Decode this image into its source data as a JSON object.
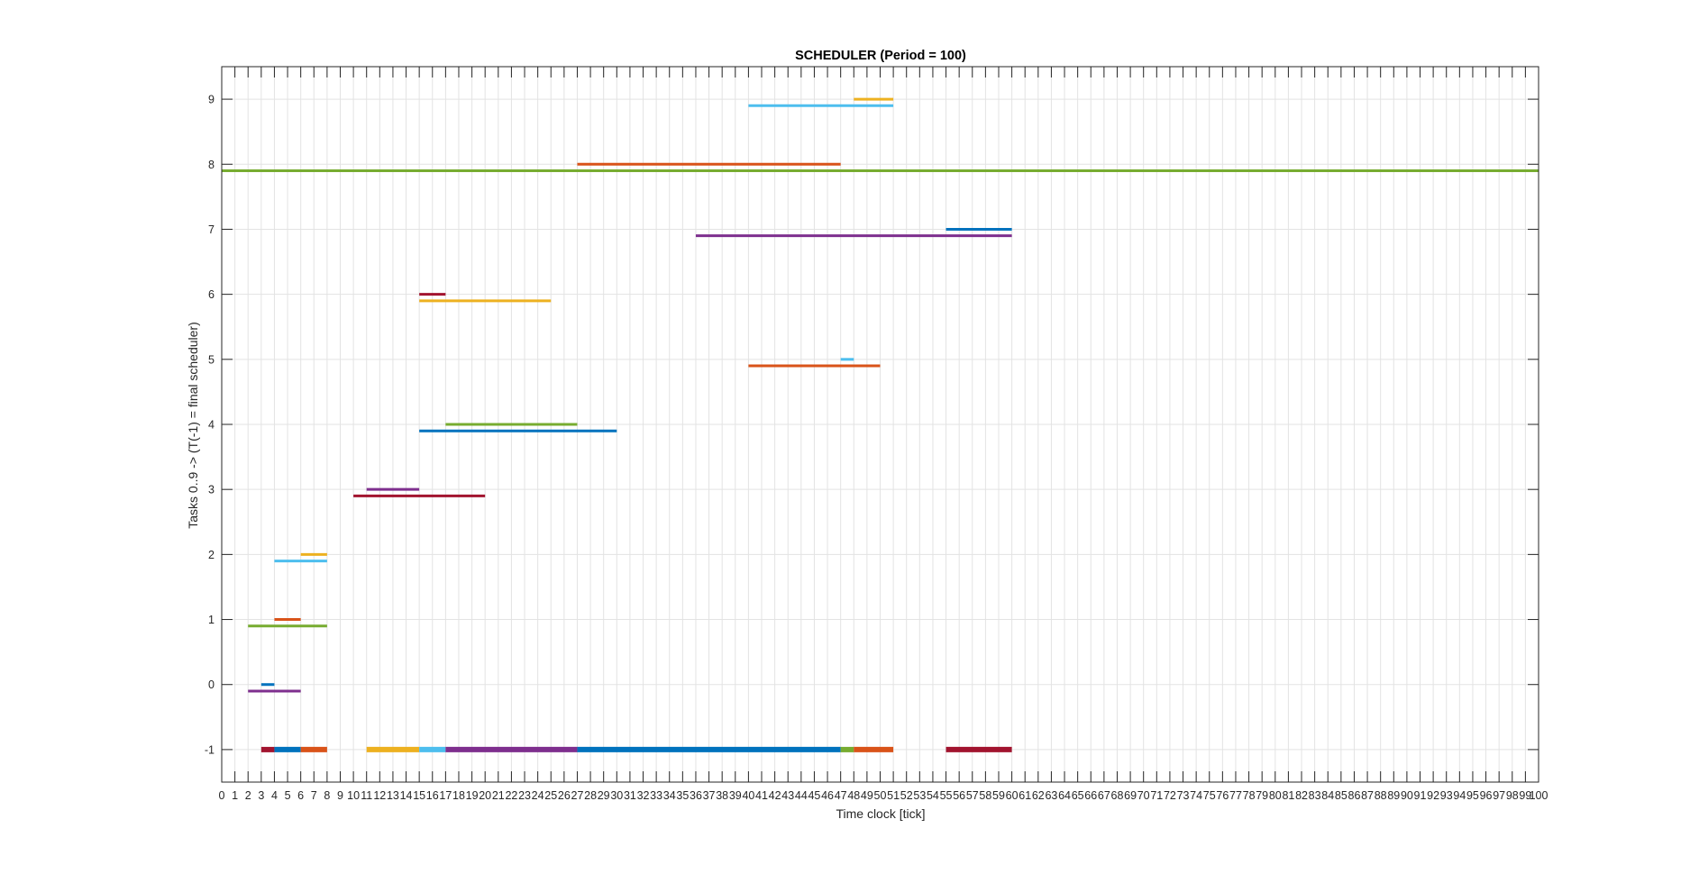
{
  "chart_data": {
    "type": "gantt",
    "title": "SCHEDULER (Period = 100)",
    "xlabel": "Time clock [tick]",
    "ylabel": "Tasks 0..9 -> (T(-1) = final scheduler)",
    "xlim": [
      0,
      100
    ],
    "ylim": [
      -1.5,
      9.5
    ],
    "xticks_step": 1,
    "yticks": [
      -1,
      0,
      1,
      2,
      3,
      4,
      5,
      6,
      7,
      8,
      9
    ],
    "grid": true,
    "colors": {
      "blue": "#0072BD",
      "orange": "#D95319",
      "yellow": "#EDB120",
      "purple": "#7E2F8E",
      "green": "#77AC30",
      "cyan": "#4DBEEE",
      "red": "#A2142F"
    },
    "segments": [
      {
        "task": 0,
        "row": "upper",
        "start": 3,
        "end": 4,
        "color": "blue"
      },
      {
        "task": 0,
        "row": "lower",
        "start": 2,
        "end": 6,
        "color": "purple"
      },
      {
        "task": 1,
        "row": "upper",
        "start": 4,
        "end": 6,
        "color": "orange"
      },
      {
        "task": 1,
        "row": "lower",
        "start": 2,
        "end": 8,
        "color": "green"
      },
      {
        "task": 2,
        "row": "upper",
        "start": 6,
        "end": 8,
        "color": "yellow"
      },
      {
        "task": 2,
        "row": "lower",
        "start": 4,
        "end": 8,
        "color": "cyan"
      },
      {
        "task": 3,
        "row": "upper",
        "start": 11,
        "end": 15,
        "color": "purple"
      },
      {
        "task": 3,
        "row": "lower",
        "start": 10,
        "end": 20,
        "color": "red"
      },
      {
        "task": 4,
        "row": "upper",
        "start": 17,
        "end": 27,
        "color": "green"
      },
      {
        "task": 4,
        "row": "lower",
        "start": 15,
        "end": 30,
        "color": "blue"
      },
      {
        "task": 5,
        "row": "upper",
        "start": 47,
        "end": 48,
        "color": "cyan"
      },
      {
        "task": 5,
        "row": "lower",
        "start": 40,
        "end": 50,
        "color": "orange"
      },
      {
        "task": 6,
        "row": "upper",
        "start": 15,
        "end": 17,
        "color": "red"
      },
      {
        "task": 6,
        "row": "lower",
        "start": 15,
        "end": 25,
        "color": "yellow"
      },
      {
        "task": 7,
        "row": "upper",
        "start": 55,
        "end": 60,
        "color": "blue"
      },
      {
        "task": 7,
        "row": "lower",
        "start": 36,
        "end": 60,
        "color": "purple"
      },
      {
        "task": 8,
        "row": "upper",
        "start": 27,
        "end": 47,
        "color": "orange"
      },
      {
        "task": 8,
        "row": "lower",
        "start": 0,
        "end": 100,
        "color": "green"
      },
      {
        "task": 9,
        "row": "upper",
        "start": 48,
        "end": 51,
        "color": "yellow"
      },
      {
        "task": 9,
        "row": "lower",
        "start": 40,
        "end": 51,
        "color": "cyan"
      }
    ],
    "final_scheduler": [
      {
        "start": 3,
        "end": 4,
        "color": "red"
      },
      {
        "start": 4,
        "end": 6,
        "color": "blue"
      },
      {
        "start": 6,
        "end": 8,
        "color": "orange"
      },
      {
        "start": 11,
        "end": 15,
        "color": "yellow"
      },
      {
        "start": 15,
        "end": 17,
        "color": "cyan"
      },
      {
        "start": 17,
        "end": 27,
        "color": "purple"
      },
      {
        "start": 27,
        "end": 47,
        "color": "blue"
      },
      {
        "start": 47,
        "end": 48,
        "color": "green"
      },
      {
        "start": 48,
        "end": 51,
        "color": "orange"
      },
      {
        "start": 55,
        "end": 60,
        "color": "red"
      }
    ]
  }
}
